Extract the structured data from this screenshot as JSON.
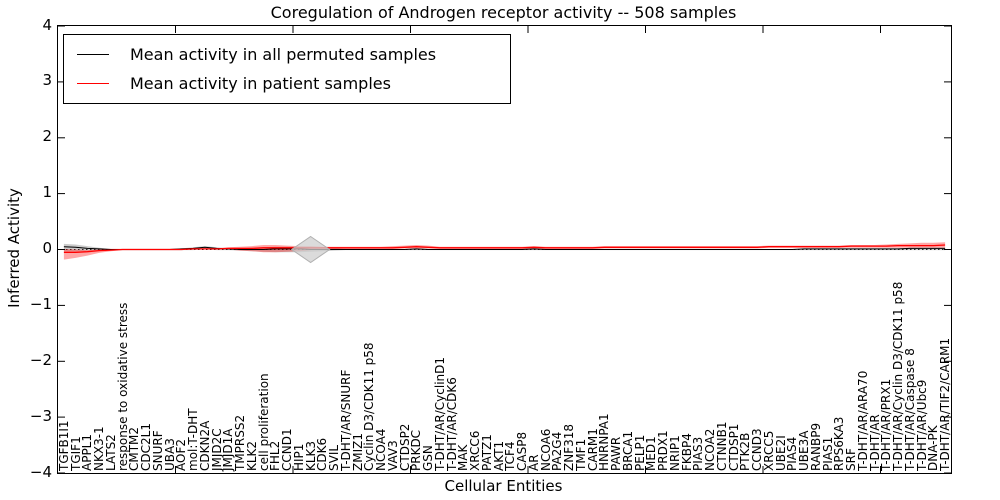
{
  "title": "Coregulation of Androgen receptor activity -- 508 samples",
  "legend": {
    "entries": [
      {
        "label": "Mean activity in all permuted samples",
        "color": "#000000"
      },
      {
        "label": "Mean activity in patient samples",
        "color": "#ff0000"
      }
    ]
  },
  "axes": {
    "ylabel": "Inferred Activity",
    "xlabel": "Cellular Entities",
    "ytick_labels": [
      "4",
      "3",
      "2",
      "1",
      "0",
      "−1",
      "−2",
      "−3",
      "−4"
    ],
    "ytick_values": [
      4,
      3,
      2,
      1,
      0,
      -1,
      -2,
      -3,
      -4
    ]
  },
  "colors": {
    "permuted_line": "#000000",
    "patient_line": "#ff0000",
    "permuted_band": "rgba(110,110,110,0.35)",
    "patient_band": "rgba(255,0,0,0.35)",
    "marker_fill": "#cfcfcf",
    "marker_edge": "#b0b0b0"
  },
  "chart_data": {
    "type": "line",
    "title": "Coregulation of Androgen receptor activity -- 508 samples",
    "xlabel": "Cellular Entities",
    "ylabel": "Inferred Activity",
    "ylim": [
      -4,
      4
    ],
    "grid": false,
    "legend_position": "upper left",
    "zero_line": {
      "style": "dotted",
      "y": 0
    },
    "x_major_tick_every": 10,
    "marker": {
      "shape": "diamond",
      "category": "KLK3",
      "category_index": 21,
      "value": 0
    },
    "categories": [
      "TGFB1I1",
      "TGIF1",
      "APPL1",
      "NKX3-1",
      "LATS2",
      "response to oxidative stress",
      "CMTM2",
      "CDC2L1",
      "SNURF",
      "UBA3",
      "AOF2",
      "mol:T-DHT",
      "CDKN2A",
      "JMJD2C",
      "JMJD1A",
      "TMPRSS2",
      "KLK2",
      "cell proliferation",
      "FHL2",
      "CCND1",
      "HIP1",
      "KLK3",
      "CDK6",
      "SVIL",
      "T-DHT/AR/SNURF",
      "ZMIZ1",
      "Cyclin D3/CDK11 p58",
      "NCOA4",
      "VAV3",
      "CTDSP2",
      "PRKDC",
      "GSN",
      "T-DHT/AR/CyclinD1",
      "T-DHT/AR/CDK6",
      "MAK",
      "XRCC6",
      "PATZ1",
      "AKT1",
      "TCF4",
      "CASP8",
      "AR",
      "NCOA6",
      "PA2G4",
      "ZNF318",
      "TMF1",
      "CARM1",
      "HNRNPA1",
      "PAWR",
      "BRCA1",
      "PELP1",
      "MED1",
      "PRDX1",
      "NRIP1",
      "FKBP4",
      "PIAS3",
      "NCOA2",
      "CTNNB1",
      "CTDSP1",
      "PTK2B",
      "CCND3",
      "XRCC5",
      "UBE2I",
      "PIAS4",
      "UBE3A",
      "RANBP9",
      "PIAS1",
      "RPS6KA3",
      "SRF",
      "T-DHT/AR/ARA70",
      "T-DHT/AR",
      "T-DHT/AR/PRX1",
      "T-DHT/AR/Cyclin D3/CDK11 p58",
      "T-DHT/AR/Caspase 8",
      "T-DHT/AR/Ubc9",
      "DNA-PK",
      "T-DHT/AR/TIF2/CARM1"
    ],
    "series": [
      {
        "name": "Mean activity in all permuted samples",
        "color": "#000000",
        "values": [
          0.05,
          0.04,
          0.02,
          0.01,
          0,
          0,
          0,
          0,
          0,
          0,
          0.01,
          0.02,
          0.04,
          0.02,
          0.01,
          0,
          0,
          0,
          0.01,
          0.01,
          0.01,
          0,
          0,
          0,
          0,
          0,
          0,
          0,
          0,
          0,
          0.01,
          0,
          0,
          0,
          0,
          0,
          0,
          0,
          0,
          0,
          0.01,
          0,
          0,
          0,
          0,
          0,
          0,
          0,
          0,
          0,
          0,
          0,
          0,
          0,
          0,
          0,
          0,
          0,
          0,
          0,
          0,
          0,
          0,
          0.01,
          0.01,
          0.01,
          0.01,
          0.01,
          0.01,
          0.01,
          0.01,
          0.01,
          0.02,
          0.02,
          0.02,
          0.02
        ],
        "band_lo": [
          -0.03,
          -0.03,
          -0.02,
          -0.01,
          -0.01,
          -0.01,
          -0.01,
          -0.01,
          -0.01,
          -0.01,
          -0.01,
          -0.01,
          0,
          -0.01,
          -0.01,
          -0.02,
          -0.03,
          -0.04,
          -0.05,
          -0.05,
          -0.05,
          -0.04,
          -0.03,
          -0.02,
          -0.01,
          -0.01,
          -0.01,
          -0.01,
          -0.01,
          -0.01,
          -0.01,
          -0.01,
          -0.01,
          -0.01,
          -0.01,
          -0.01,
          -0.01,
          -0.01,
          -0.01,
          -0.01,
          -0.01,
          -0.01,
          -0.01,
          -0.01,
          -0.01,
          -0.01,
          -0.01,
          -0.01,
          -0.01,
          -0.01,
          -0.01,
          -0.01,
          -0.01,
          -0.01,
          -0.01,
          -0.01,
          -0.01,
          -0.01,
          -0.01,
          -0.01,
          -0.01,
          -0.01,
          -0.01,
          -0.01,
          -0.01,
          -0.01,
          -0.01,
          -0.01,
          -0.01,
          -0.01,
          -0.01,
          -0.01,
          -0.01,
          -0.01,
          -0.01,
          -0.01
        ],
        "band_hi": [
          0.1,
          0.09,
          0.06,
          0.03,
          0.01,
          0.01,
          0.01,
          0.01,
          0.01,
          0.01,
          0.02,
          0.04,
          0.06,
          0.04,
          0.02,
          0.02,
          0.03,
          0.04,
          0.05,
          0.05,
          0.05,
          0.04,
          0.03,
          0.02,
          0.01,
          0.01,
          0.01,
          0.01,
          0.01,
          0.01,
          0.02,
          0.01,
          0.01,
          0.01,
          0.01,
          0.01,
          0.01,
          0.01,
          0.01,
          0.01,
          0.02,
          0.01,
          0.01,
          0.01,
          0.01,
          0.01,
          0.01,
          0.01,
          0.01,
          0.01,
          0.01,
          0.01,
          0.01,
          0.01,
          0.01,
          0.01,
          0.01,
          0.01,
          0.01,
          0.01,
          0.01,
          0.01,
          0.01,
          0.02,
          0.02,
          0.02,
          0.02,
          0.02,
          0.02,
          0.02,
          0.02,
          0.02,
          0.03,
          0.03,
          0.03,
          0.03
        ]
      },
      {
        "name": "Mean activity in patient samples",
        "color": "#ff0000",
        "values": [
          -0.05,
          -0.05,
          -0.04,
          -0.02,
          -0.01,
          0,
          0,
          0,
          0,
          0,
          0,
          0.01,
          0.01,
          0.01,
          0.02,
          0.02,
          0.02,
          0.03,
          0.03,
          0.03,
          0.03,
          0.03,
          0.03,
          0.03,
          0.03,
          0.03,
          0.03,
          0.03,
          0.03,
          0.04,
          0.05,
          0.04,
          0.03,
          0.03,
          0.03,
          0.03,
          0.03,
          0.03,
          0.03,
          0.03,
          0.04,
          0.03,
          0.03,
          0.03,
          0.03,
          0.03,
          0.04,
          0.04,
          0.04,
          0.04,
          0.04,
          0.04,
          0.04,
          0.04,
          0.04,
          0.04,
          0.04,
          0.04,
          0.04,
          0.04,
          0.05,
          0.05,
          0.05,
          0.05,
          0.05,
          0.05,
          0.05,
          0.06,
          0.06,
          0.06,
          0.06,
          0.07,
          0.07,
          0.07,
          0.07,
          0.08
        ],
        "band_lo": [
          -0.18,
          -0.15,
          -0.11,
          -0.06,
          -0.03,
          -0.01,
          -0.01,
          -0.01,
          -0.01,
          -0.01,
          -0.01,
          0,
          0,
          0,
          0,
          -0.02,
          -0.03,
          -0.05,
          -0.05,
          -0.04,
          -0.03,
          -0.01,
          0.01,
          0.01,
          0.01,
          0.01,
          0.01,
          0.01,
          0.01,
          0.02,
          0.02,
          0.02,
          0.01,
          0.01,
          0.01,
          0.01,
          0.01,
          0.01,
          0.01,
          0.01,
          0.02,
          0.01,
          0.01,
          0.01,
          0.01,
          0.01,
          0.02,
          0.02,
          0.02,
          0.02,
          0.02,
          0.02,
          0.02,
          0.02,
          0.02,
          0.02,
          0.02,
          0.02,
          0.02,
          0.02,
          0.03,
          0.03,
          0.03,
          0.03,
          0.03,
          0.03,
          0.03,
          0.03,
          0.03,
          0.03,
          0.03,
          0.03,
          0.03,
          0.03,
          0.03,
          0.03
        ],
        "band_hi": [
          0.01,
          0,
          -0.01,
          0,
          0.01,
          0.01,
          0.01,
          0.01,
          0.01,
          0.01,
          0.01,
          0.02,
          0.02,
          0.02,
          0.04,
          0.05,
          0.06,
          0.08,
          0.08,
          0.07,
          0.06,
          0.06,
          0.05,
          0.05,
          0.05,
          0.05,
          0.05,
          0.05,
          0.06,
          0.07,
          0.08,
          0.07,
          0.05,
          0.05,
          0.05,
          0.05,
          0.05,
          0.05,
          0.05,
          0.05,
          0.06,
          0.05,
          0.05,
          0.05,
          0.05,
          0.05,
          0.06,
          0.06,
          0.06,
          0.06,
          0.06,
          0.06,
          0.06,
          0.06,
          0.06,
          0.06,
          0.06,
          0.06,
          0.06,
          0.06,
          0.07,
          0.07,
          0.07,
          0.07,
          0.07,
          0.07,
          0.07,
          0.08,
          0.08,
          0.08,
          0.09,
          0.1,
          0.11,
          0.12,
          0.12,
          0.13
        ]
      }
    ]
  }
}
